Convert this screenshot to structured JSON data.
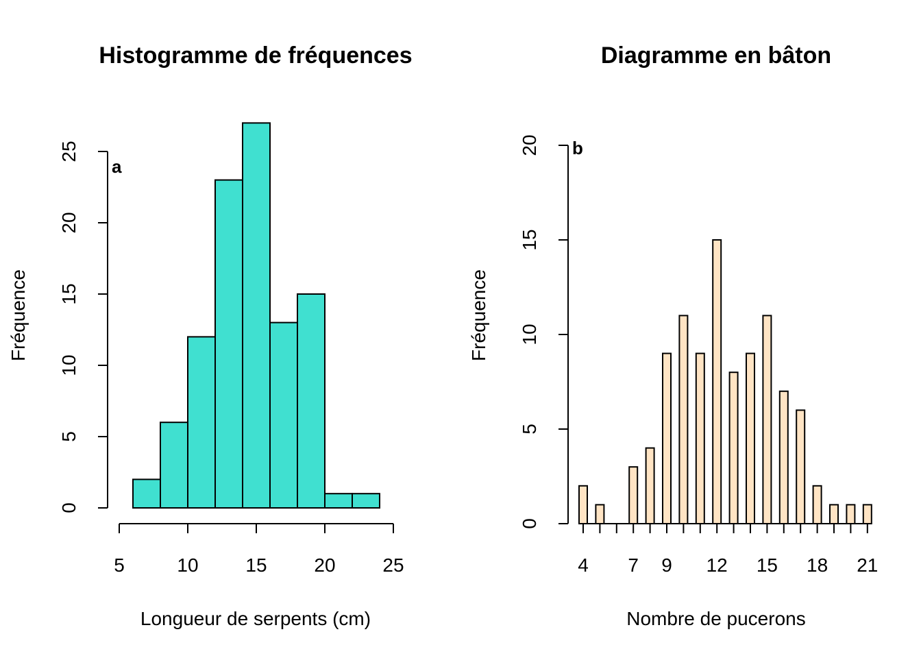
{
  "chart_data": [
    {
      "type": "bar",
      "title": "Histogramme de fréquences",
      "panel_label": "a",
      "xlabel": "Longueur de serpents (cm)",
      "ylabel": "Fréquence",
      "bins": [
        [
          6,
          8
        ],
        [
          8,
          10
        ],
        [
          10,
          12
        ],
        [
          12,
          14
        ],
        [
          14,
          16
        ],
        [
          16,
          18
        ],
        [
          18,
          20
        ],
        [
          20,
          22
        ],
        [
          22,
          24
        ]
      ],
      "values": [
        2,
        6,
        12,
        23,
        27,
        13,
        15,
        1,
        1
      ],
      "xticks": [
        5,
        10,
        15,
        20,
        25
      ],
      "yticks": [
        0,
        5,
        10,
        15,
        20,
        25
      ],
      "xlim": [
        5,
        25
      ],
      "ylim": [
        0,
        25
      ],
      "color": "#40E0D0"
    },
    {
      "type": "bar",
      "title": "Diagramme en bâton",
      "panel_label": "b",
      "xlabel": "Nombre de pucerons",
      "ylabel": "Fréquence",
      "categories": [
        4,
        5,
        6,
        7,
        8,
        9,
        10,
        11,
        12,
        13,
        14,
        15,
        16,
        17,
        18,
        19,
        20,
        21
      ],
      "values": [
        2,
        1,
        0,
        3,
        4,
        9,
        11,
        9,
        15,
        8,
        9,
        11,
        7,
        6,
        2,
        1,
        1,
        1
      ],
      "xticks": [
        4,
        7,
        9,
        12,
        15,
        18,
        21
      ],
      "yticks": [
        0,
        5,
        10,
        15,
        20
      ],
      "ylim": [
        0,
        20
      ],
      "color": "#FFE4C4"
    }
  ]
}
